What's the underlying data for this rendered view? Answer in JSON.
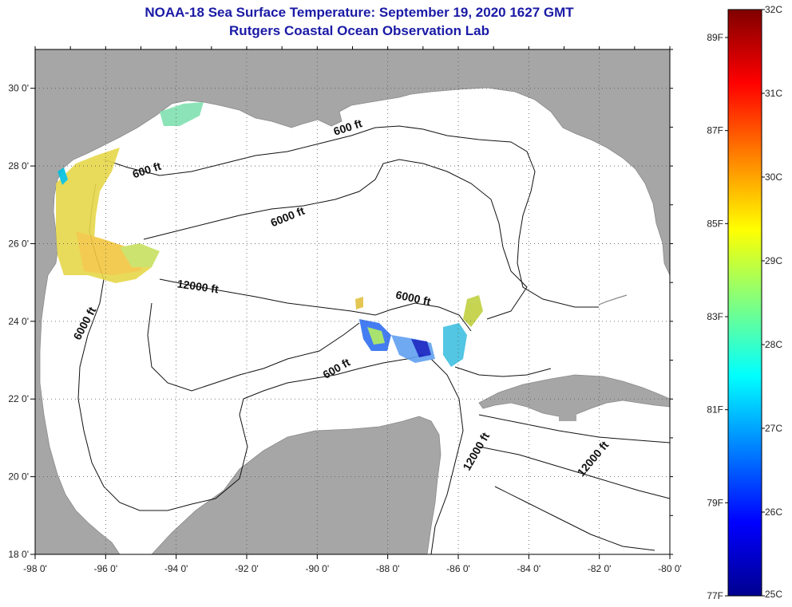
{
  "title": {
    "line1": "NOAA-18 Sea Surface Temperature:  September 19, 2020 1627 GMT",
    "line2": "Rutgers Coastal Ocean Observation Lab"
  },
  "map": {
    "lon_range": [
      -98,
      -80
    ],
    "lat_range": [
      18,
      31
    ],
    "lon_ticks": [
      "-98 0'",
      "-96 0'",
      "-94 0'",
      "-92 0'",
      "-90 0'",
      "-88 0'",
      "-86 0'",
      "-84 0'",
      "-82 0'",
      "-80 0'"
    ],
    "lat_ticks": [
      "18 0'",
      "20 0'",
      "22 0'",
      "24 0'",
      "26 0'",
      "28 0'",
      "30 0'"
    ],
    "grid": "dotted",
    "land_color": "#a6a6a6",
    "water_color": "#ffffff",
    "contour_labels": [
      {
        "text": "600 ft",
        "lon": -89.1,
        "lat": 28.9
      },
      {
        "text": "600 ft",
        "lon": -94.8,
        "lat": 27.8
      },
      {
        "text": "6000 ft",
        "lon": -90.8,
        "lat": 26.6
      },
      {
        "text": "12000 ft",
        "lon": -93.4,
        "lat": 24.8
      },
      {
        "text": "6000 ft",
        "lon": -87.3,
        "lat": 24.5
      },
      {
        "text": "6000 ft",
        "lon": -96.5,
        "lat": 23.9
      },
      {
        "text": "600 ft",
        "lon": -89.4,
        "lat": 22.7
      },
      {
        "text": "12000 ft",
        "lon": -85.4,
        "lat": 20.6
      },
      {
        "text": "12000 ft",
        "lon": -82.1,
        "lat": 20.4
      }
    ]
  },
  "colorbar": {
    "min_c": 25,
    "max_c": 32,
    "celsius_labels": [
      "32C",
      "31C",
      "30C",
      "29C",
      "28C",
      "27C",
      "26C",
      "25C"
    ],
    "fahrenheit_labels": [
      "89F",
      "87F",
      "85F",
      "83F",
      "81F",
      "79F",
      "77F"
    ],
    "colors": [
      "#00008f",
      "#0000ff",
      "#0080ff",
      "#00ffff",
      "#80ff80",
      "#ffff00",
      "#ff8000",
      "#ff0000",
      "#800000"
    ]
  }
}
